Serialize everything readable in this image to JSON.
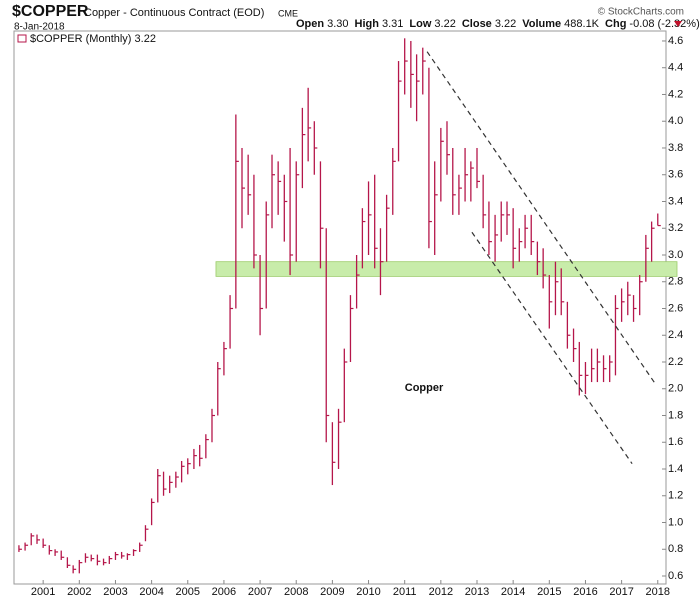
{
  "header": {
    "symbol": "$COPPER",
    "name": "Copper - Continuous Contract (EOD)",
    "exchange": "CME",
    "date": "8-Jan-2018",
    "quote": [
      [
        "Open",
        "3.30"
      ],
      [
        "High",
        "3.31"
      ],
      [
        "Low",
        "3.22"
      ],
      [
        "Close",
        "3.22"
      ],
      [
        "Volume",
        "488.1K"
      ],
      [
        "Chg",
        "-0.08 (-2.32%)"
      ]
    ],
    "source": "© StockCharts.com"
  },
  "chart_data": {
    "type": "ohlc",
    "legend": "$COPPER (Monthly) 3.22",
    "annotation": "Copper",
    "color": "#b5164a",
    "xlim": [
      2000,
      2018.2
    ],
    "ylim": [
      0.55,
      4.7
    ],
    "xticks": [
      2001,
      2002,
      2003,
      2004,
      2005,
      2006,
      2007,
      2008,
      2009,
      2010,
      2011,
      2012,
      2013,
      2014,
      2015,
      2016,
      2017,
      2018
    ],
    "yticks": [
      0.6,
      0.8,
      {
        "value": 1,
        "label": "1.0"
      },
      1.2,
      1.4,
      1.6,
      1.8,
      {
        "value": 2,
        "label": "2.0"
      },
      2.2,
      2.4,
      2.6,
      2.8,
      {
        "value": 3,
        "label": "3.0"
      },
      3.2,
      3.4,
      3.6,
      3.8,
      {
        "value": 4,
        "label": "4.0"
      },
      4.2,
      4.4,
      4.6
    ],
    "band": {
      "xmin": 2005.78,
      "ymin": 2.84,
      "ymax": 2.95,
      "color": "#c8ecaa"
    },
    "lines": [
      {
        "x": [
          2011.62,
          2017.95
        ],
        "y": [
          4.52,
          2.03
        ]
      },
      {
        "x": [
          2012.86,
          2017.29
        ],
        "y": [
          3.17,
          1.44
        ]
      }
    ],
    "x": [
      2000.33,
      2000.5,
      2000.67,
      2000.83,
      2001,
      2001.17,
      2001.33,
      2001.5,
      2001.67,
      2001.83,
      2002,
      2002.17,
      2002.33,
      2002.5,
      2002.67,
      2002.83,
      2003,
      2003.17,
      2003.33,
      2003.5,
      2003.67,
      2003.83,
      2004,
      2004.17,
      2004.33,
      2004.5,
      2004.67,
      2004.83,
      2005,
      2005.17,
      2005.33,
      2005.5,
      2005.67,
      2005.83,
      2006,
      2006.17,
      2006.33,
      2006.5,
      2006.67,
      2006.83,
      2007,
      2007.17,
      2007.33,
      2007.5,
      2007.67,
      2007.83,
      2008,
      2008.17,
      2008.33,
      2008.5,
      2008.67,
      2008.83,
      2009,
      2009.17,
      2009.33,
      2009.5,
      2009.67,
      2009.83,
      2010,
      2010.17,
      2010.33,
      2010.5,
      2010.67,
      2010.83,
      2011,
      2011.17,
      2011.33,
      2011.5,
      2011.67,
      2011.83,
      2012,
      2012.17,
      2012.33,
      2012.5,
      2012.67,
      2012.83,
      2013,
      2013.17,
      2013.33,
      2013.5,
      2013.67,
      2013.83,
      2014,
      2014.17,
      2014.33,
      2014.5,
      2014.67,
      2014.83,
      2015,
      2015.17,
      2015.33,
      2015.5,
      2015.67,
      2015.83,
      2016,
      2016.17,
      2016.33,
      2016.5,
      2016.67,
      2016.83,
      2017,
      2017.17,
      2017.33,
      2017.5,
      2017.67,
      2017.83,
      2018
    ],
    "high": [
      0.83,
      0.85,
      0.92,
      0.91,
      0.88,
      0.83,
      0.8,
      0.79,
      0.74,
      0.68,
      0.72,
      0.77,
      0.76,
      0.76,
      0.73,
      0.75,
      0.78,
      0.78,
      0.77,
      0.8,
      0.85,
      0.98,
      1.18,
      1.4,
      1.38,
      1.35,
      1.38,
      1.46,
      1.48,
      1.55,
      1.58,
      1.66,
      1.85,
      2.2,
      2.35,
      2.7,
      4.05,
      3.8,
      3.75,
      3.6,
      3.0,
      3.4,
      3.75,
      3.7,
      3.6,
      3.8,
      3.7,
      4.1,
      4.25,
      4.0,
      3.7,
      3.2,
      1.75,
      1.85,
      2.3,
      2.7,
      3.0,
      3.35,
      3.55,
      3.6,
      3.2,
      3.45,
      3.8,
      4.45,
      4.62,
      4.6,
      4.5,
      4.55,
      4.4,
      3.7,
      3.95,
      4.0,
      3.8,
      3.6,
      3.8,
      3.7,
      3.8,
      3.6,
      3.4,
      3.3,
      3.4,
      3.4,
      3.35,
      3.2,
      3.3,
      3.3,
      3.1,
      3.05,
      2.85,
      2.95,
      2.9,
      2.65,
      2.45,
      2.35,
      2.2,
      2.3,
      2.3,
      2.25,
      2.25,
      2.7,
      2.75,
      2.8,
      2.7,
      2.85,
      3.15,
      3.25,
      3.31
    ],
    "low": [
      0.78,
      0.79,
      0.83,
      0.84,
      0.81,
      0.76,
      0.75,
      0.72,
      0.66,
      0.62,
      0.62,
      0.7,
      0.71,
      0.68,
      0.68,
      0.69,
      0.72,
      0.73,
      0.72,
      0.75,
      0.78,
      0.86,
      0.98,
      1.15,
      1.2,
      1.22,
      1.26,
      1.3,
      1.36,
      1.4,
      1.42,
      1.48,
      1.6,
      1.8,
      2.1,
      2.3,
      2.6,
      3.2,
      3.3,
      2.9,
      2.4,
      2.6,
      3.2,
      3.3,
      3.1,
      2.85,
      2.95,
      3.5,
      3.7,
      3.6,
      2.9,
      1.6,
      1.28,
      1.4,
      1.75,
      2.2,
      2.6,
      2.9,
      3.0,
      2.9,
      2.7,
      2.95,
      3.3,
      3.7,
      4.2,
      4.1,
      4.0,
      4.2,
      3.05,
      3.0,
      3.4,
      3.6,
      3.3,
      3.3,
      3.4,
      3.4,
      3.5,
      3.2,
      3.0,
      2.95,
      3.1,
      3.15,
      2.9,
      2.95,
      3.05,
      3.0,
      2.85,
      2.75,
      2.45,
      2.55,
      2.55,
      2.3,
      2.2,
      1.95,
      1.96,
      2.05,
      2.05,
      2.05,
      2.05,
      2.1,
      2.5,
      2.55,
      2.5,
      2.55,
      2.8,
      2.95,
      3.22
    ],
    "close": [
      0.8,
      0.83,
      0.9,
      0.87,
      0.83,
      0.79,
      0.78,
      0.74,
      0.68,
      0.65,
      0.7,
      0.74,
      0.73,
      0.71,
      0.7,
      0.73,
      0.76,
      0.75,
      0.76,
      0.79,
      0.83,
      0.95,
      1.15,
      1.35,
      1.25,
      1.3,
      1.34,
      1.42,
      1.44,
      1.5,
      1.48,
      1.62,
      1.8,
      2.15,
      2.3,
      2.6,
      3.7,
      3.5,
      3.45,
      3.0,
      2.6,
      3.3,
      3.6,
      3.55,
      3.4,
      3.0,
      3.6,
      3.9,
      3.95,
      3.8,
      3.2,
      1.8,
      1.45,
      1.75,
      2.2,
      2.6,
      2.85,
      3.25,
      3.3,
      3.05,
      2.95,
      3.35,
      3.7,
      4.3,
      4.45,
      4.35,
      4.3,
      4.45,
      3.25,
      3.45,
      3.85,
      3.75,
      3.45,
      3.5,
      3.6,
      3.65,
      3.55,
      3.3,
      3.1,
      3.15,
      3.3,
      3.3,
      3.05,
      3.1,
      3.2,
      3.1,
      2.95,
      2.85,
      2.65,
      2.8,
      2.65,
      2.4,
      2.3,
      2.1,
      2.1,
      2.15,
      2.2,
      2.15,
      2.2,
      2.6,
      2.65,
      2.7,
      2.6,
      2.8,
      3.05,
      3.2,
      3.22
    ]
  }
}
